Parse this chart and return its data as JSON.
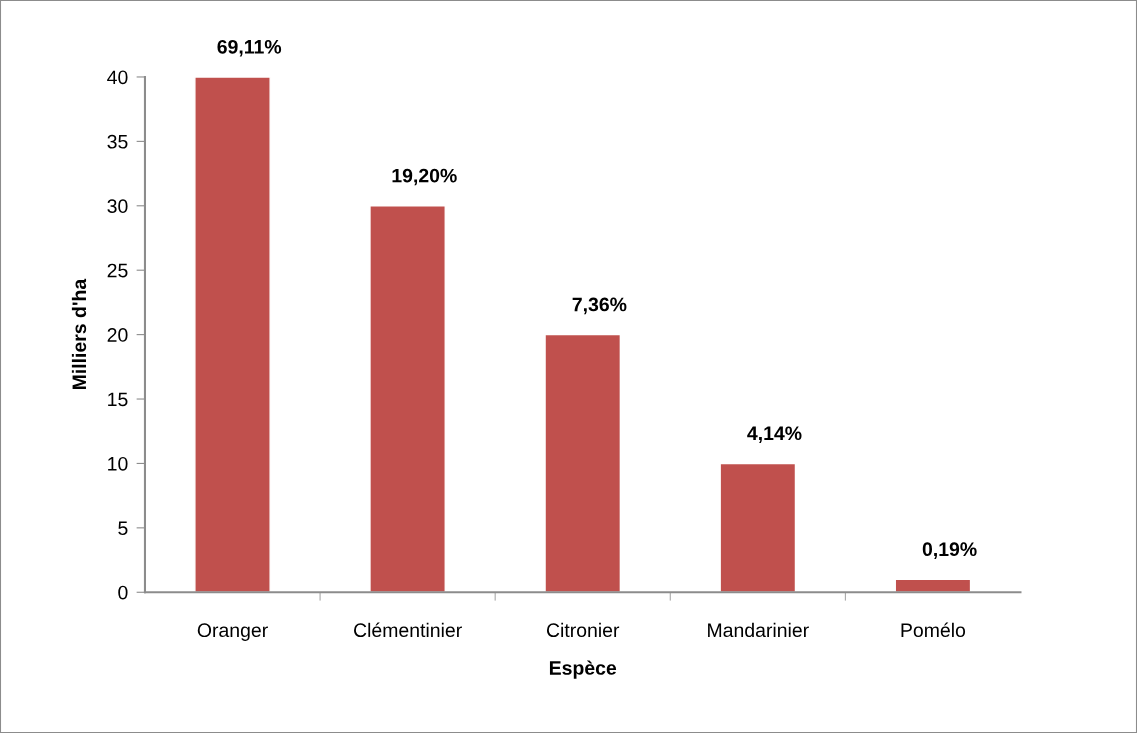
{
  "chart_data": {
    "type": "bar",
    "xlabel": "Espèce",
    "ylabel": "Milliers d'ha",
    "categories": [
      "Oranger",
      "Clémentinier",
      "Citronier",
      "Mandarinier",
      "Pomélo"
    ],
    "values": [
      40,
      30,
      20,
      10,
      1
    ],
    "color": "#c0504d",
    "annotations": [
      {
        "text": "69,11%",
        "x": "Oranger",
        "y": 40
      },
      {
        "text": "19,20%",
        "x": "Clémentinier",
        "y": 30
      },
      {
        "text": "7,36%",
        "x": "Citronier",
        "y": 20
      },
      {
        "text": "4,14%",
        "x": "Mandarinier",
        "y": 10
      },
      {
        "text": "0,19%",
        "x": "Pomélo",
        "y": 1
      }
    ],
    "ylim": [
      0,
      40
    ],
    "yticks": [
      0,
      5,
      10,
      15,
      20,
      25,
      30,
      35,
      40
    ],
    "grid": false,
    "legend": false
  }
}
